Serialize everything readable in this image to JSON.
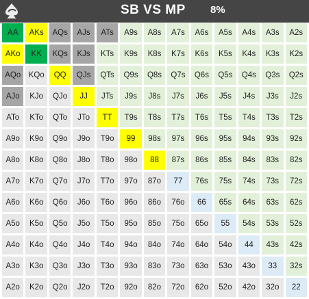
{
  "header": {
    "title": "SB VS MP",
    "percent": "8%",
    "logo_icon": "spade-swirl-logo-icon"
  },
  "colors": {
    "green": "#00b050",
    "yellow": "#ffff00",
    "gray": "#a6a6a6",
    "light_green": "#e2f0d9",
    "light_gray": "#e8e8e8",
    "light_blue": "#ddebf7"
  },
  "grid": {
    "rows": [
      [
        "AA",
        "AKs",
        "AQs",
        "AJs",
        "ATs",
        "A9s",
        "A8s",
        "A7s",
        "A6s",
        "A5s",
        "A4s",
        "A3s",
        "A2s"
      ],
      [
        "AKo",
        "KK",
        "KQs",
        "KJs",
        "KTs",
        "K9s",
        "K8s",
        "K7s",
        "K6s",
        "K5s",
        "K4s",
        "K3s",
        "K2s"
      ],
      [
        "AQo",
        "KQo",
        "QQ",
        "QJs",
        "QTs",
        "Q9s",
        "Q8s",
        "Q7s",
        "Q6s",
        "Q5s",
        "Q4s",
        "Q3s",
        "Q2s"
      ],
      [
        "AJo",
        "KJo",
        "QJo",
        "JJ",
        "JTs",
        "J9s",
        "J8s",
        "J7s",
        "J6s",
        "J5s",
        "J4s",
        "J3s",
        "J2s"
      ],
      [
        "ATo",
        "KTo",
        "QTo",
        "JTo",
        "TT",
        "T9s",
        "T8s",
        "T7s",
        "T6s",
        "T5s",
        "T4s",
        "T3s",
        "T2s"
      ],
      [
        "A9o",
        "K9o",
        "Q9o",
        "J9o",
        "T9o",
        "99",
        "98s",
        "97s",
        "96s",
        "95s",
        "94s",
        "93s",
        "92s"
      ],
      [
        "A8o",
        "K8o",
        "Q8o",
        "J8o",
        "T8o",
        "98o",
        "88",
        "87s",
        "86s",
        "85s",
        "84s",
        "83s",
        "82s"
      ],
      [
        "A7o",
        "K7o",
        "Q7o",
        "J7o",
        "T7o",
        "97o",
        "87o",
        "77",
        "76s",
        "75s",
        "74s",
        "73s",
        "72s"
      ],
      [
        "A6o",
        "K6o",
        "Q6o",
        "J6o",
        "T6o",
        "96o",
        "86o",
        "76o",
        "66",
        "65s",
        "64s",
        "63s",
        "62s"
      ],
      [
        "A5o",
        "K5o",
        "Q5o",
        "J5o",
        "T5o",
        "95o",
        "85o",
        "75o",
        "65o",
        "55",
        "54s",
        "53s",
        "52s"
      ],
      [
        "A4o",
        "K4o",
        "Q4o",
        "J4o",
        "T4o",
        "94o",
        "84o",
        "74o",
        "64o",
        "54o",
        "44",
        "43s",
        "42s"
      ],
      [
        "A3o",
        "K3o",
        "Q3o",
        "J3o",
        "T3o",
        "93o",
        "83o",
        "73o",
        "63o",
        "53o",
        "43o",
        "33",
        "32s"
      ],
      [
        "A2o",
        "K2o",
        "Q2o",
        "J2o",
        "T2o",
        "92o",
        "82o",
        "72o",
        "62o",
        "52o",
        "42o",
        "32o",
        "22"
      ]
    ],
    "highlights": {
      "green": [
        "AA",
        "KK"
      ],
      "yellow": [
        "AKs",
        "AKo",
        "QQ",
        "JJ",
        "TT",
        "99",
        "88"
      ],
      "gray": [
        "AQs",
        "AJs",
        "ATs",
        "KQs",
        "KJs",
        "AQo",
        "AJo",
        "QJs"
      ]
    }
  }
}
